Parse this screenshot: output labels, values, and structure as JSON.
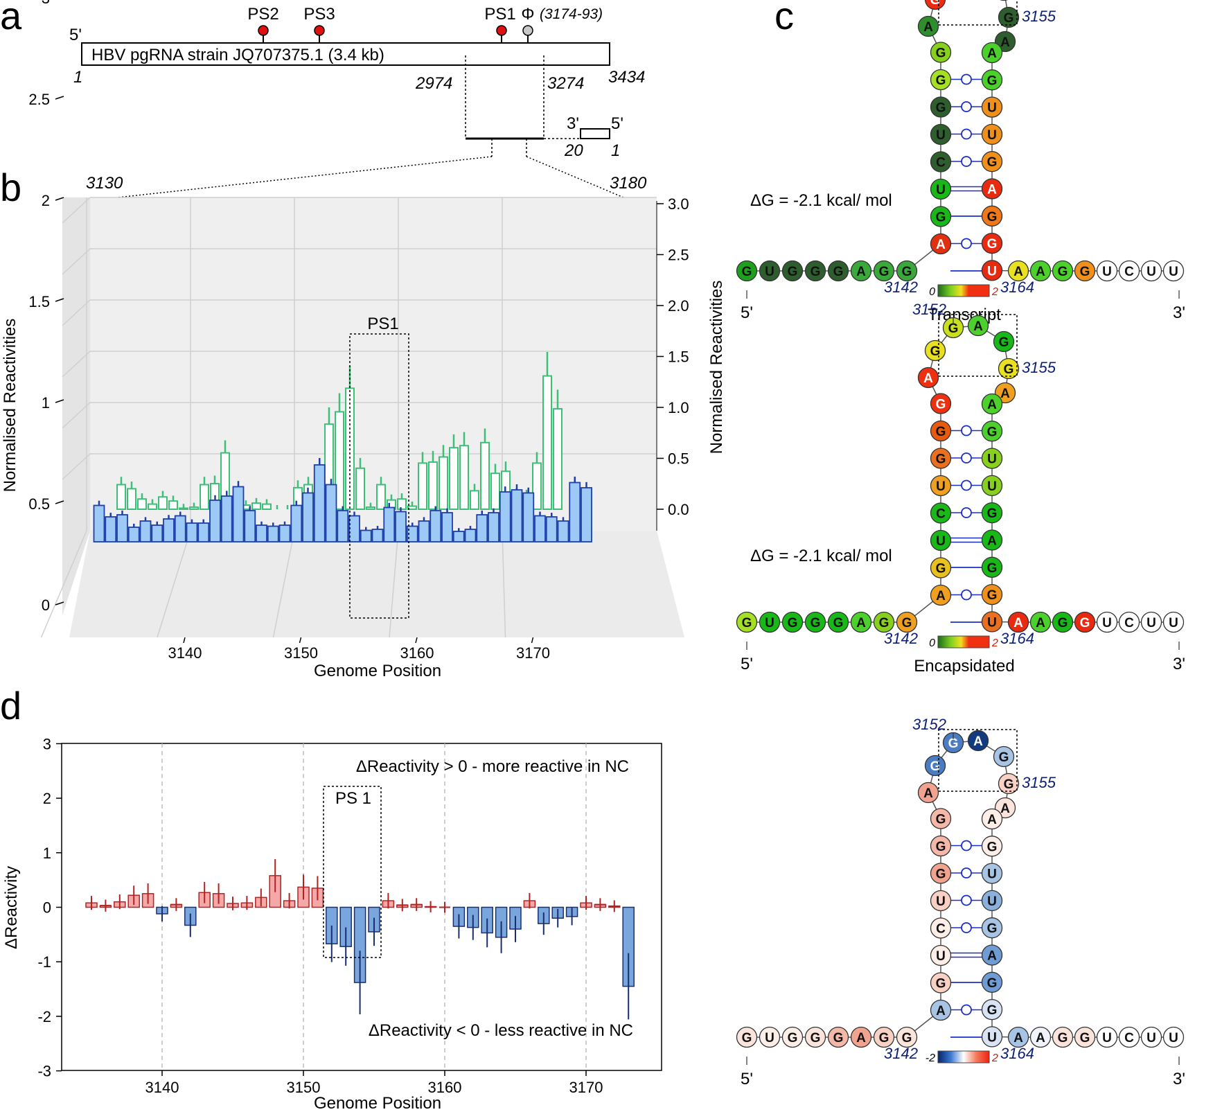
{
  "panel_labels": {
    "a": "a",
    "b": "b",
    "c": "c",
    "d": "d"
  },
  "panel_a": {
    "five_prime": "5'",
    "three_prime": "3'",
    "genome_box_label": "HBV pgRNA strain JQ707375.1 (3.4 kb)",
    "start": "1",
    "end": "3434",
    "region_start": "2974",
    "region_end": "3274",
    "markers": [
      {
        "label": "PS2",
        "color": "#e01010"
      },
      {
        "label": "PS3",
        "color": "#e01010"
      },
      {
        "label": "PS1",
        "color": "#e01010"
      },
      {
        "label": "Φ",
        "color": "#c8c8c8"
      }
    ],
    "phi_range": "(3174-93)",
    "inset_three": "3'",
    "inset_five": "5'",
    "inset_left": "20",
    "inset_right": "1"
  },
  "panel_b": {
    "range_left": "3130",
    "range_right": "3180",
    "ps_label": "PS1",
    "left_axis_label": "Normalised Reactivities",
    "right_axis_label": "Normalised Reactivities",
    "xlabel": "Genome Position",
    "x_ticks": [
      "3140",
      "3150",
      "3160",
      "3170"
    ],
    "left_ticks": [
      "0",
      "0.5",
      "1",
      "1.5",
      "2",
      "2.5",
      "3"
    ],
    "right_ticks": [
      "0.0",
      "0.5",
      "1.0",
      "1.5",
      "2.0",
      "2.5",
      "3.0"
    ],
    "colors": {
      "transcript": "#3dbf78",
      "encapsidated_fill": "#9cc9f5",
      "encapsidated_edge": "#1f3fa8"
    }
  },
  "chart_data": [
    {
      "type": "bar",
      "panel": "b",
      "ylabel": "Normalised Reactivities",
      "xlabel": "Genome Position",
      "ylim": [
        0,
        3
      ],
      "x": [
        3132,
        3133,
        3134,
        3135,
        3136,
        3137,
        3138,
        3139,
        3140,
        3141,
        3142,
        3143,
        3144,
        3145,
        3146,
        3147,
        3148,
        3149,
        3150,
        3151,
        3152,
        3153,
        3154,
        3155,
        3156,
        3157,
        3158,
        3159,
        3160,
        3161,
        3162,
        3163,
        3164,
        3165,
        3166,
        3167,
        3168,
        3169,
        3170,
        3171,
        3172,
        3173,
        3174
      ],
      "series": [
        {
          "values": [
            0.24,
            0.2,
            0.1,
            0.05,
            0.12,
            0.08,
            0.01,
            0.02,
            0.24,
            0.25,
            0.55,
            0.12,
            0.04,
            0.06,
            0.05,
            0.0,
            0.0,
            0.21,
            0.24,
            0.05,
            0.83,
            0.95,
            1.18,
            0.4,
            0.02,
            0.24,
            0.09,
            0.1,
            0.03,
            0.45,
            0.46,
            0.51,
            0.6,
            0.62,
            0.18,
            0.65,
            0.35,
            0.37,
            0.14,
            0.13,
            0.45,
            1.3,
            0.98
          ]
        },
        {
          "values": [
            0.35,
            0.24,
            0.26,
            0.14,
            0.2,
            0.16,
            0.22,
            0.25,
            0.18,
            0.18,
            0.4,
            0.44,
            0.53,
            0.3,
            0.16,
            0.15,
            0.16,
            0.35,
            0.47,
            0.74,
            0.55,
            0.3,
            0.25,
            0.11,
            0.12,
            0.33,
            0.29,
            0.15,
            0.2,
            0.3,
            0.28,
            0.1,
            0.12,
            0.26,
            0.28,
            0.48,
            0.5,
            0.47,
            0.25,
            0.24,
            0.2,
            0.57,
            0.52
          ]
        }
      ]
    },
    {
      "type": "bar",
      "panel": "d",
      "ylabel": "ΔReactivity",
      "xlabel": "Genome Position",
      "ylim": [
        -3,
        3
      ],
      "x": [
        3135,
        3136,
        3137,
        3138,
        3139,
        3140,
        3141,
        3142,
        3143,
        3144,
        3145,
        3146,
        3147,
        3148,
        3149,
        3150,
        3151,
        3152,
        3153,
        3154,
        3155,
        3156,
        3157,
        3158,
        3159,
        3160,
        3161,
        3162,
        3163,
        3164,
        3165,
        3166,
        3167,
        3168,
        3169,
        3170,
        3171,
        3172,
        3173
      ],
      "values": [
        0.08,
        0.03,
        0.1,
        0.22,
        0.25,
        -0.12,
        0.05,
        -0.33,
        0.27,
        0.25,
        0.07,
        0.08,
        0.18,
        0.58,
        0.12,
        0.37,
        0.35,
        -0.67,
        -0.72,
        -1.38,
        -0.45,
        0.12,
        0.04,
        0.05,
        0.01,
        0.0,
        -0.35,
        -0.37,
        -0.47,
        -0.55,
        -0.4,
        0.12,
        -0.3,
        -0.2,
        -0.17,
        0.08,
        0.05,
        0.02,
        -1.45
      ],
      "colors": {
        "positive": "#f4a8a8",
        "positive_edge": "#b22222",
        "negative": "#7aa6de",
        "negative_edge": "#1a2e6e"
      }
    }
  ],
  "panel_d": {
    "ylabel": "ΔReactivity",
    "xlabel": "Genome Position",
    "x_ticks": [
      "3140",
      "3150",
      "3160",
      "3170"
    ],
    "y_ticks": [
      "-3",
      "-2",
      "-1",
      "0",
      "1",
      "2",
      "3"
    ],
    "ps_label": "PS 1",
    "annotation_top": "ΔReactivity > 0 - more reactive in NC",
    "annotation_bottom": "ΔReactivity < 0 - less reactive in NC"
  },
  "panel_c": {
    "labels": {
      "n3152": "3152",
      "n3155": "3155",
      "n3142": "3142",
      "n3164": "3164",
      "five": "5'",
      "three": "3'"
    },
    "delta_g_1": "ΔG = -2.1 kcal/ mol",
    "delta_g_2": "ΔG = -2.1 kcal/ mol",
    "structure_names": [
      "Transcript",
      "Encapsidated",
      ""
    ],
    "scale_1": {
      "min": "0",
      "max": "2"
    },
    "scale_2": {
      "min": "0",
      "max": "2"
    },
    "scale_3": {
      "min": "-2",
      "max": "2"
    },
    "left_arm": [
      "G",
      "U",
      "G",
      "G",
      "G",
      "A",
      "G",
      "G"
    ],
    "stem_5": [
      "A",
      "G",
      "U",
      "C",
      "U",
      "G",
      "G",
      "G"
    ],
    "loop": [
      "A",
      "G",
      "G",
      "A",
      "G",
      "G",
      "A"
    ],
    "stem_3": [
      "A",
      "G",
      "U",
      "U",
      "G",
      "A",
      "G",
      "G",
      "U"
    ],
    "right_arm": [
      "A",
      "A",
      "G",
      "G",
      "U",
      "C",
      "U",
      "U"
    ],
    "colors_transcript": [
      "#1ea01e",
      "#2e5e2e",
      "#2e5e2e",
      "#2e5e2e",
      "#2e5e2e",
      "#3aa83a",
      "#3aa83a",
      "#3aa83a",
      "#e03010",
      "#18b818",
      "#18b818",
      "#2e5e2e",
      "#2e5e2e",
      "#2e5e2e",
      "#a6e024",
      "#88d020",
      "#2e8e2e",
      "#ee2a10",
      "#ee2a10",
      "#f0781a",
      "#18b818",
      "#2e5e2e",
      "#2e5e2e",
      "#4cd02c",
      "#4cd02c",
      "#f0901c",
      "#f0901c",
      "#f0901c",
      "#e82a10",
      "#f0781a",
      "#e82a10",
      "#e82a10",
      "#e8e020",
      "#4cd02c",
      "#4cd02c",
      "#f0901c"
    ],
    "colors_encapsidated": [
      "#a6e024",
      "#18b818",
      "#18b818",
      "#18b818",
      "#18b818",
      "#4cd02c",
      "#88d020",
      "#f0a020",
      "#f0a020",
      "#e8c020",
      "#18b818",
      "#18b818",
      "#f0a020",
      "#e87020",
      "#e85a10",
      "#ee3010",
      "#ee3010",
      "#e8e020",
      "#c8e020",
      "#4cd02c",
      "#18b818",
      "#e8e020",
      "#f0a020",
      "#4cd02c",
      "#4cd02c",
      "#88d020",
      "#88d020",
      "#18b818",
      "#18b818",
      "#18b818",
      "#f0901c",
      "#e87020",
      "#e82a10",
      "#4cd02c",
      "#18b818",
      "#e82a10"
    ],
    "colors_delta": [
      "#fbe4dc",
      "#fdeee8",
      "#fdeee8",
      "#fbe4dc",
      "#f4b8a8",
      "#f0a490",
      "#f8d0c4",
      "#fbe4dc",
      "#a8c4e4",
      "#f8d0c4",
      "#fdeee8",
      "#fdeee8",
      "#f8d0c4",
      "#f0a490",
      "#f4b8a8",
      "#f4b8a8",
      "#f0a490",
      "#4a7cc4",
      "#4a7cc4",
      "#113a80",
      "#a8c4e4",
      "#f8d0c4",
      "#fbe4dc",
      "#fdeee8",
      "#fdeee8",
      "#a8c4e4",
      "#8cb0dc",
      "#a8c4e4",
      "#6f9cd4",
      "#6f9cd4",
      "#d8e4f4",
      "#d8e4f4",
      "#a8c4e4",
      "#f0f4fa",
      "#fbe4dc",
      "#fbe4dc"
    ]
  }
}
